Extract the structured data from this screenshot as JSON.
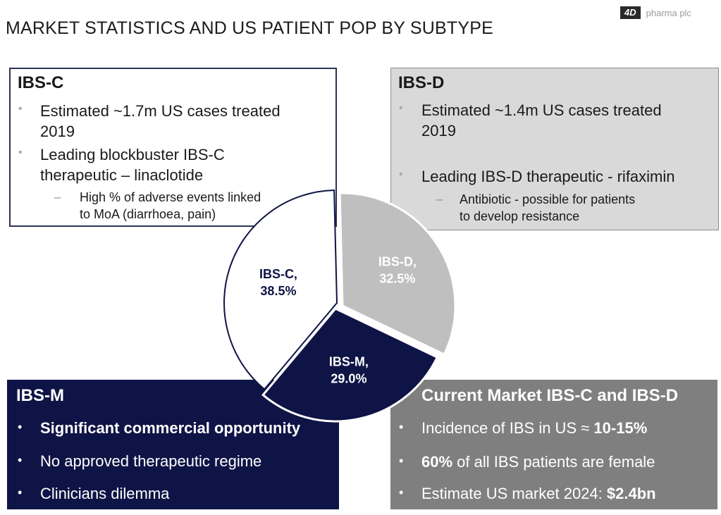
{
  "title": "MARKET STATISTICS AND US PATIENT POP BY SUBTYPE",
  "brand": {
    "mark": "4D",
    "name": "pharma plc"
  },
  "ibs_c": {
    "heading": "IBS-C",
    "bullets": [
      {
        "lines": [
          "Estimated ~1.7m US cases treated",
          "2019"
        ]
      },
      {
        "lines": [
          "Leading blockbuster IBS-C",
          "therapeutic – linaclotide"
        ]
      }
    ],
    "sub": {
      "dash": "–",
      "lines": [
        "High % of adverse events linked",
        "to MoA (diarrhoea, pain)"
      ]
    }
  },
  "ibs_d": {
    "heading": "IBS-D",
    "bullets": [
      {
        "lines": [
          "Estimated ~1.4m US cases treated",
          "2019"
        ]
      },
      {
        "lines": [
          "Leading IBS-D therapeutic - rifaximin"
        ]
      }
    ],
    "sub": {
      "dash": "–",
      "lines": [
        "Antibiotic - possible for patients",
        "to develop resistance"
      ]
    }
  },
  "ibs_m": {
    "heading": "IBS-M",
    "bullets": [
      "Significant commercial opportunity",
      "No approved therapeutic regime",
      "Clinicians dilemma"
    ]
  },
  "market": {
    "heading": "Current Market IBS-C and IBS-D",
    "bullets": [
      {
        "pre": "Incidence of IBS in US ≈ ",
        "bold": "10-15%",
        "post": ""
      },
      {
        "pre": "",
        "bold": "60%",
        "post": " of all IBS patients are female"
      },
      {
        "pre": "Estimate US market 2024: ",
        "bold": "$2.4bn",
        "post": ""
      }
    ]
  },
  "chart_data": {
    "type": "pie",
    "title": "",
    "slices": [
      {
        "label": "IBS-C",
        "value": 38.5,
        "display": "38.5%",
        "color": "#ffffff",
        "text_color": "#0f1446"
      },
      {
        "label": "IBS-D",
        "value": 32.5,
        "display": "32.5%",
        "color": "#bfbfbf",
        "text_color": "#ffffff"
      },
      {
        "label": "IBS-M",
        "value": 29.0,
        "display": "29.0%",
        "color": "#0f1446",
        "text_color": "#ffffff"
      }
    ]
  },
  "colors": {
    "navy": "#0f1446",
    "grey_box": "#7f7f7f",
    "light_box": "#d9d9d9"
  },
  "icons": {
    "bullet": "bullet-dot",
    "dash": "dash"
  }
}
